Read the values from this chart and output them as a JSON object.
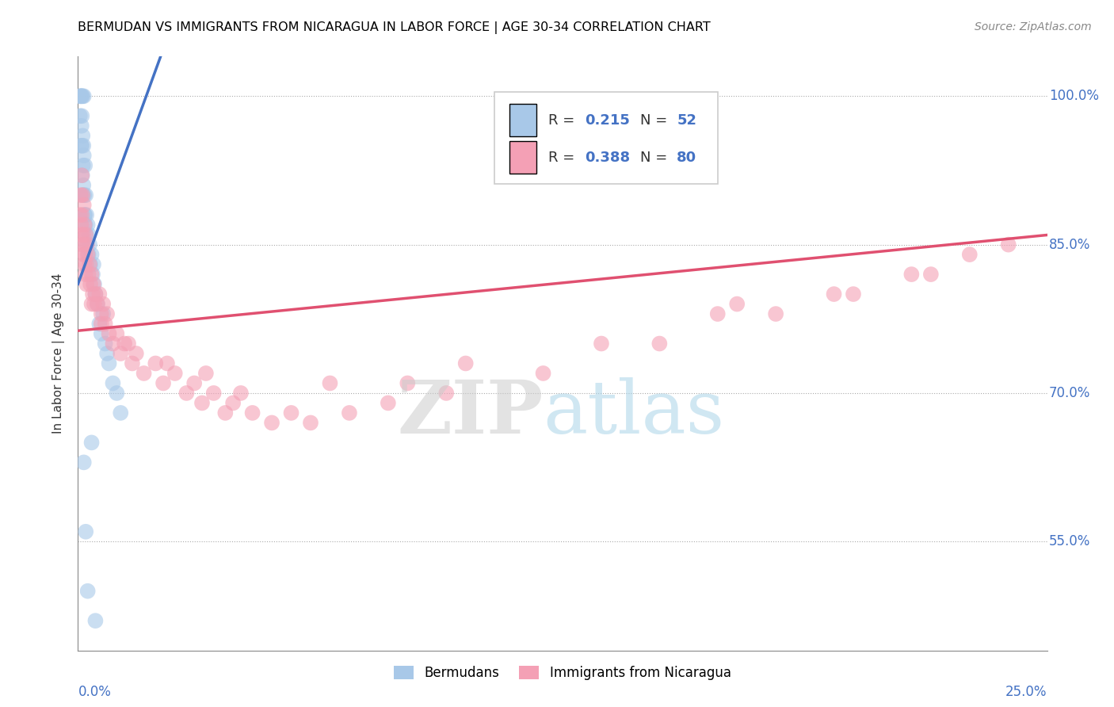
{
  "title": "BERMUDAN VS IMMIGRANTS FROM NICARAGUA IN LABOR FORCE | AGE 30-34 CORRELATION CHART",
  "source": "Source: ZipAtlas.com",
  "ylabel": "In Labor Force | Age 30-34",
  "xlim": [
    0.0,
    25.0
  ],
  "ylim": [
    44.0,
    104.0
  ],
  "yticks": [
    55.0,
    70.0,
    85.0,
    100.0
  ],
  "ytick_labels": [
    "55.0%",
    "70.0%",
    "85.0%",
    "100.0%"
  ],
  "color_blue": "#a8c8e8",
  "color_pink": "#f4a0b5",
  "color_line_blue": "#4472c4",
  "color_line_pink": "#e05070",
  "watermark_zip": "ZIP",
  "watermark_atlas": "atlas",
  "legend_r1": "0.215",
  "legend_n1": "52",
  "legend_r2": "0.388",
  "legend_n2": "80",
  "blue_x": [
    0.05,
    0.05,
    0.07,
    0.08,
    0.08,
    0.09,
    0.1,
    0.1,
    0.1,
    0.11,
    0.12,
    0.12,
    0.13,
    0.13,
    0.14,
    0.14,
    0.15,
    0.15,
    0.16,
    0.17,
    0.18,
    0.18,
    0.19,
    0.2,
    0.21,
    0.22,
    0.22,
    0.25,
    0.27,
    0.28,
    0.3,
    0.32,
    0.35,
    0.38,
    0.4,
    0.42,
    0.45,
    0.5,
    0.55,
    0.6,
    0.65,
    0.7,
    0.75,
    0.8,
    0.9,
    1.0,
    1.1,
    0.15,
    0.2,
    0.25,
    0.35,
    0.45
  ],
  "blue_y": [
    100.0,
    98.0,
    100.0,
    100.0,
    95.0,
    97.0,
    100.0,
    98.0,
    95.0,
    92.0,
    100.0,
    96.0,
    93.0,
    90.0,
    95.0,
    91.0,
    100.0,
    94.0,
    90.0,
    88.0,
    93.0,
    88.0,
    87.0,
    90.0,
    86.0,
    88.0,
    85.0,
    87.0,
    84.0,
    86.0,
    85.0,
    83.0,
    84.0,
    82.0,
    83.0,
    81.0,
    80.0,
    79.0,
    77.0,
    76.0,
    78.0,
    75.0,
    74.0,
    73.0,
    71.0,
    70.0,
    68.0,
    63.0,
    56.0,
    50.0,
    65.0,
    47.0
  ],
  "pink_x": [
    0.05,
    0.07,
    0.08,
    0.09,
    0.1,
    0.1,
    0.11,
    0.12,
    0.13,
    0.14,
    0.15,
    0.15,
    0.16,
    0.17,
    0.18,
    0.19,
    0.2,
    0.21,
    0.22,
    0.23,
    0.25,
    0.27,
    0.3,
    0.32,
    0.35,
    0.38,
    0.4,
    0.42,
    0.45,
    0.5,
    0.55,
    0.6,
    0.65,
    0.7,
    0.75,
    0.8,
    0.9,
    1.0,
    1.1,
    1.2,
    1.4,
    1.5,
    1.7,
    2.0,
    2.2,
    2.5,
    2.8,
    3.0,
    3.2,
    3.5,
    3.8,
    4.0,
    4.5,
    5.0,
    5.5,
    6.0,
    7.0,
    8.0,
    9.5,
    12.0,
    15.0,
    18.0,
    20.0,
    22.0,
    24.0,
    3.3,
    4.2,
    6.5,
    10.0,
    13.5,
    16.5,
    19.5,
    21.5,
    23.0,
    17.0,
    8.5,
    2.3,
    1.3,
    0.6,
    0.35
  ],
  "pink_y": [
    88.0,
    90.0,
    87.0,
    86.0,
    92.0,
    88.0,
    85.0,
    90.0,
    86.0,
    84.0,
    89.0,
    85.0,
    83.0,
    87.0,
    84.0,
    82.0,
    86.0,
    83.0,
    81.0,
    85.0,
    84.0,
    82.0,
    83.0,
    81.0,
    82.0,
    80.0,
    81.0,
    79.0,
    80.0,
    79.0,
    80.0,
    78.0,
    79.0,
    77.0,
    78.0,
    76.0,
    75.0,
    76.0,
    74.0,
    75.0,
    73.0,
    74.0,
    72.0,
    73.0,
    71.0,
    72.0,
    70.0,
    71.0,
    69.0,
    70.0,
    68.0,
    69.0,
    68.0,
    67.0,
    68.0,
    67.0,
    68.0,
    69.0,
    70.0,
    72.0,
    75.0,
    78.0,
    80.0,
    82.0,
    85.0,
    72.0,
    70.0,
    71.0,
    73.0,
    75.0,
    78.0,
    80.0,
    82.0,
    84.0,
    79.0,
    71.0,
    73.0,
    75.0,
    77.0,
    79.0
  ]
}
